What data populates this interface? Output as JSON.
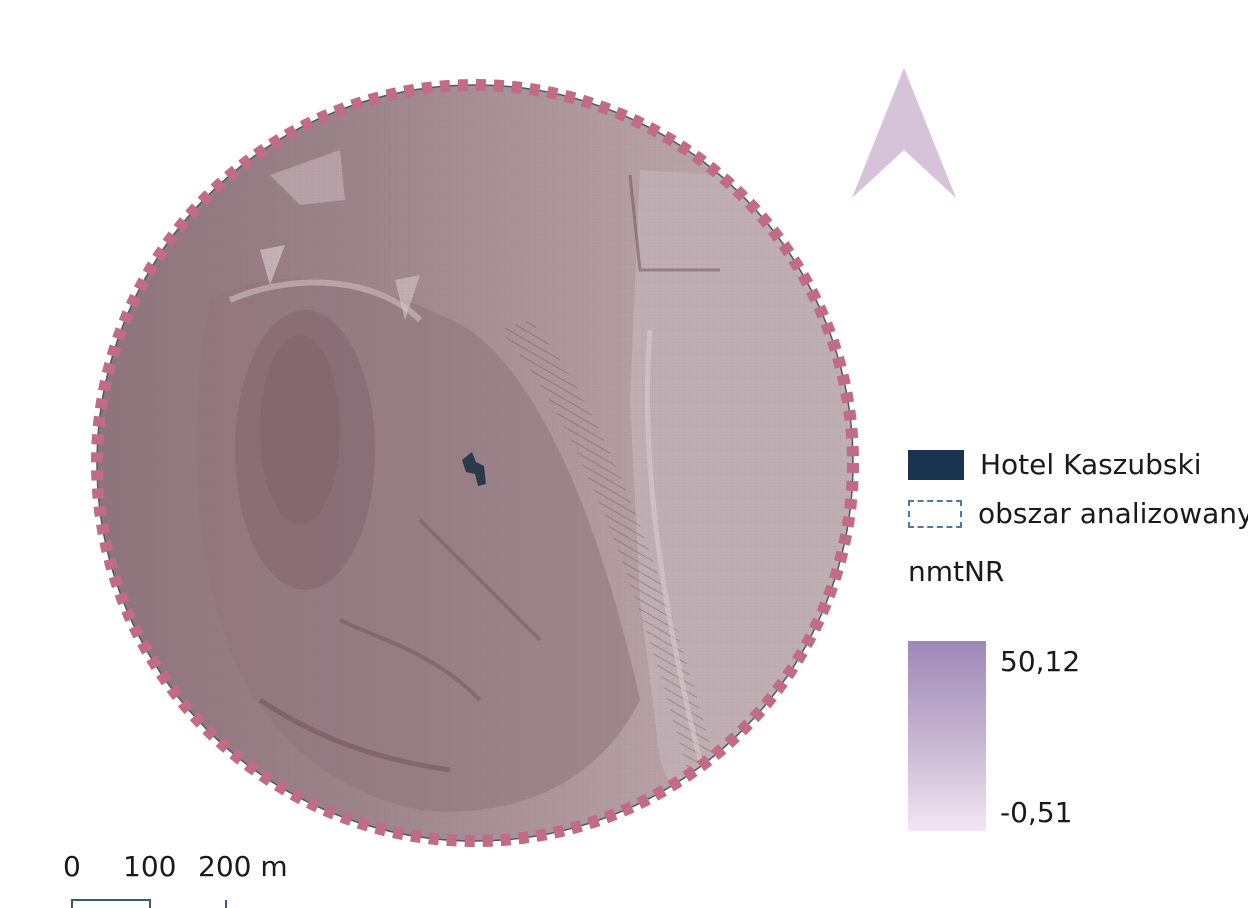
{
  "map": {
    "north_arrow_icon": "north-arrow-icon",
    "hotel_marker_icon": "building-footprint-icon",
    "colors": {
      "hillshade": "#a68f97",
      "boundary": "#c26b85",
      "hotel": "#2b3a4a",
      "north_arrow": "#d7c3d9"
    }
  },
  "legend": {
    "items": [
      {
        "label": "Hotel Kaszubski",
        "symbol": "filled-rect",
        "color": "#1b3450"
      },
      {
        "label": "obszar analizowany",
        "symbol": "dashed-rect",
        "color": "#4f76ad"
      }
    ],
    "raster_title": "nmtNR",
    "raster_max": "50,12",
    "raster_min": "-0,51",
    "ramp_colors": [
      "#9d88b7",
      "#f3e6f3"
    ]
  },
  "scale_bar": {
    "labels": [
      "0",
      "100",
      "200 m"
    ]
  }
}
